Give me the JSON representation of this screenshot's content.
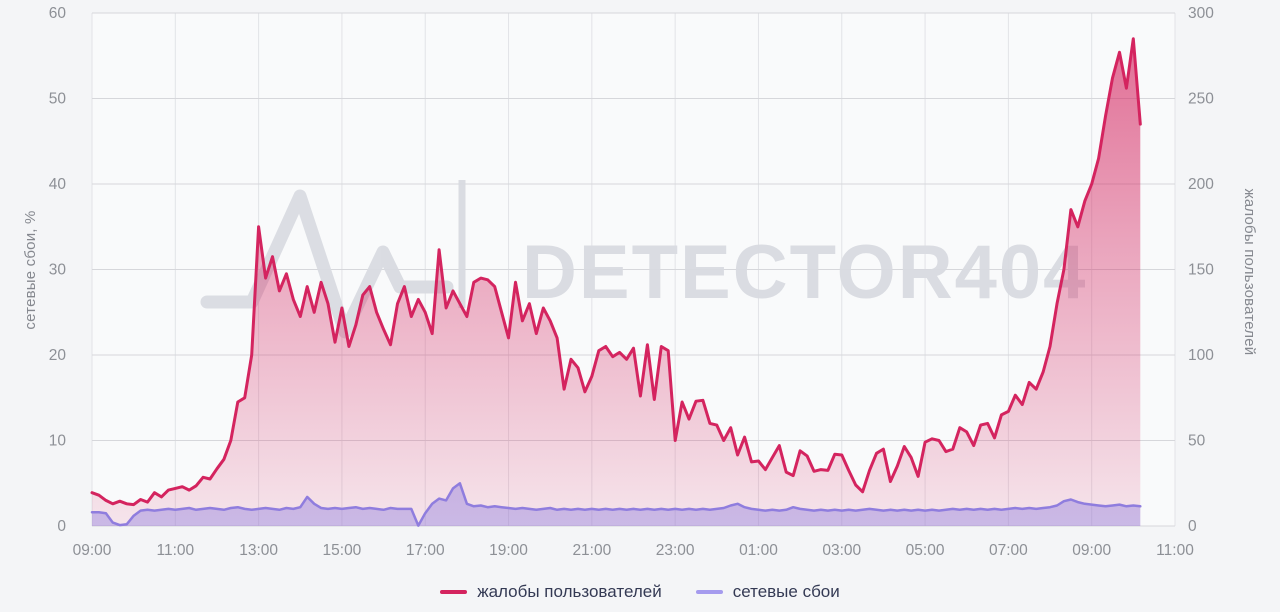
{
  "page": {
    "background": "#f4f5f7",
    "plot_background": "#f9fafb"
  },
  "watermark": {
    "text": "DETECTOR404",
    "logo": "pulse-heartbeat-logo",
    "color": "#d9dbe1"
  },
  "legend": {
    "items": [
      {
        "label": "жалобы пользователей",
        "color": "#d4245f"
      },
      {
        "label": "сетевые сбои",
        "color": "#a59bee"
      }
    ]
  },
  "chart_data": {
    "type": "area",
    "title": "",
    "grid": true,
    "x_axis": {
      "tick_labels": [
        "09:00",
        "11:00",
        "13:00",
        "15:00",
        "17:00",
        "19:00",
        "21:00",
        "23:00",
        "01:00",
        "03:00",
        "05:00",
        "07:00",
        "09:00",
        "11:00"
      ],
      "span_hours": 26,
      "start_time": "09:00",
      "data_end_time": "10:10",
      "interval_minutes": 10
    },
    "y_left": {
      "label": "сетевые сбои, %",
      "min": 0,
      "max": 60,
      "ticks": [
        0,
        10,
        20,
        30,
        40,
        50,
        60
      ]
    },
    "y_right": {
      "label": "жалобы пользователей",
      "min": 0,
      "max": 300,
      "ticks": [
        0,
        50,
        100,
        150,
        200,
        250,
        300
      ]
    },
    "series": [
      {
        "name": "жалобы пользователей",
        "axis": "right",
        "color": "#d4245f",
        "line_width": 3,
        "values": [
          19.5,
          18,
          15,
          13,
          14.5,
          13,
          12.5,
          15.5,
          14,
          19.5,
          17,
          21,
          22,
          23,
          21,
          23.5,
          28.5,
          27.5,
          33.5,
          39,
          50,
          72.5,
          75,
          100,
          175,
          145,
          157.5,
          137.5,
          147.5,
          132.5,
          122.5,
          140,
          125,
          142.5,
          130,
          107.5,
          127.5,
          105,
          117.5,
          135,
          140,
          125,
          115,
          106,
          130,
          140,
          122.5,
          132.5,
          125,
          112.5,
          161.5,
          127.5,
          137.5,
          130,
          122.5,
          142.5,
          145,
          144,
          140,
          125,
          110,
          142.5,
          120,
          130,
          112.5,
          127.5,
          120,
          110,
          80,
          97.5,
          92.5,
          78.5,
          87.5,
          102.5,
          105,
          99,
          101.5,
          97.5,
          104,
          76,
          106,
          74,
          105,
          102.5,
          50,
          72.5,
          62.5,
          73,
          73.5,
          60,
          59,
          50,
          57.5,
          41.5,
          52,
          37.5,
          38,
          33,
          40,
          47,
          31.5,
          29.5,
          44,
          41,
          32,
          33,
          32.5,
          42,
          41.5,
          32.5,
          24,
          20,
          32.5,
          42.5,
          45,
          26,
          35,
          46.5,
          40,
          29,
          49,
          51,
          50,
          43.5,
          45,
          57.5,
          55,
          47,
          59,
          60,
          51.5,
          65,
          67,
          76.5,
          71,
          84,
          80,
          90,
          105,
          130,
          150,
          185,
          175,
          190,
          200,
          215,
          240,
          262,
          277,
          256,
          285,
          235
        ]
      },
      {
        "name": "сетевые сбои",
        "axis": "left",
        "color": "#8f7dde",
        "line_width": 2.5,
        "values": [
          1.6,
          1.6,
          1.5,
          0.4,
          0.1,
          0.2,
          1.2,
          1.8,
          1.9,
          1.8,
          1.9,
          2.0,
          1.9,
          2.0,
          2.1,
          1.9,
          2.0,
          2.1,
          2.0,
          1.9,
          2.1,
          2.2,
          2.0,
          1.9,
          2.0,
          2.1,
          2.0,
          1.9,
          2.1,
          2.0,
          2.2,
          3.4,
          2.6,
          2.1,
          2.0,
          2.1,
          2.0,
          2.1,
          2.2,
          2.0,
          2.1,
          2.0,
          1.9,
          2.1,
          2.0,
          2.0,
          2.0,
          0.05,
          1.5,
          2.6,
          3.2,
          3.0,
          4.4,
          5.0,
          2.6,
          2.3,
          2.4,
          2.2,
          2.3,
          2.2,
          2.1,
          2.0,
          2.1,
          2.0,
          1.9,
          2.0,
          2.1,
          1.9,
          2.0,
          1.9,
          2.0,
          1.9,
          2.0,
          1.9,
          2.0,
          1.9,
          2.0,
          1.9,
          2.0,
          1.9,
          2.0,
          1.9,
          2.0,
          1.9,
          2.0,
          1.9,
          2.0,
          1.9,
          2.0,
          1.9,
          2.0,
          2.1,
          2.4,
          2.6,
          2.2,
          2.0,
          1.9,
          1.8,
          1.9,
          1.8,
          1.9,
          2.2,
          2.0,
          1.9,
          1.8,
          1.9,
          1.8,
          1.9,
          1.8,
          1.9,
          1.8,
          1.9,
          2.0,
          1.9,
          1.8,
          1.9,
          1.8,
          1.9,
          1.8,
          1.9,
          1.8,
          1.9,
          1.8,
          1.9,
          2.0,
          1.9,
          2.0,
          1.9,
          2.0,
          1.9,
          2.0,
          1.9,
          2.0,
          2.1,
          2.0,
          2.1,
          2.0,
          2.1,
          2.2,
          2.4,
          2.9,
          3.1,
          2.8,
          2.6,
          2.5,
          2.4,
          2.3,
          2.4,
          2.5,
          2.3,
          2.4,
          2.3
        ]
      }
    ],
    "styles": {
      "grid_h_color": "#d6d7db",
      "grid_v_color": "#e2e3e7",
      "tick_text_color": "#8d9096"
    }
  }
}
